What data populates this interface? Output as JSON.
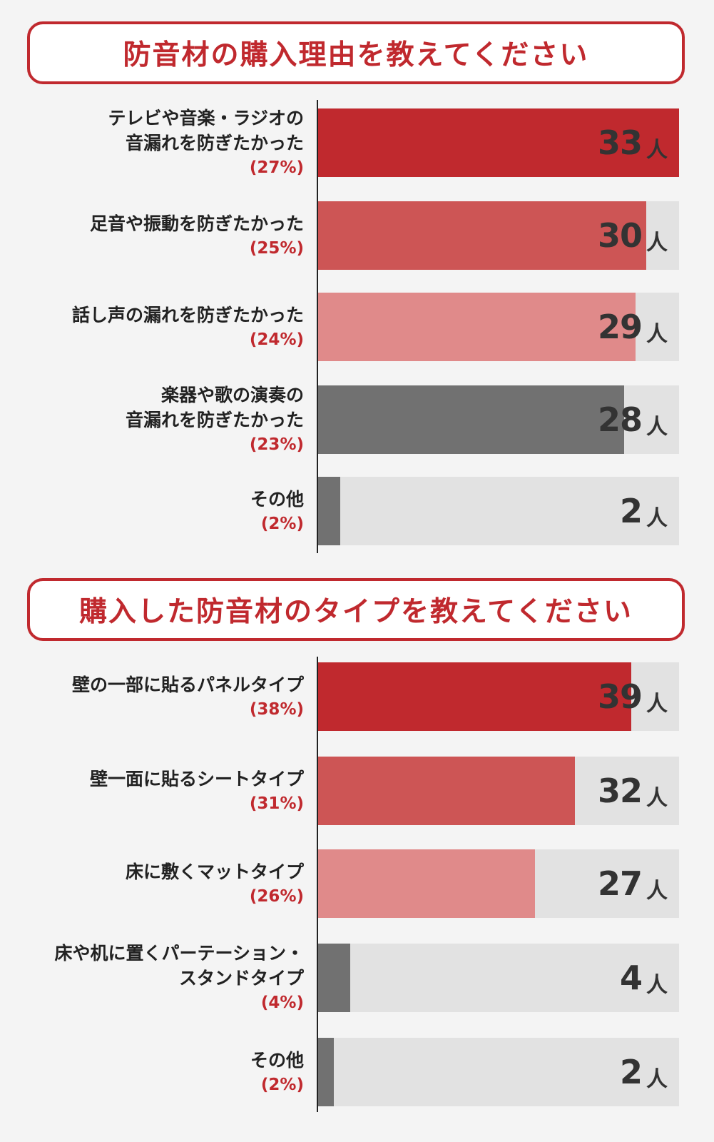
{
  "colors": {
    "accent": "#c0292e",
    "bar1": "#c0292e",
    "bar2": "#cd5555",
    "bar3": "#e08a8a",
    "bar4": "#717171",
    "track": "#e2e2e2"
  },
  "unit": "人",
  "chart_data": [
    {
      "type": "bar",
      "orientation": "horizontal",
      "title": "防音材の購入理由を教えてください",
      "xlim": [
        0,
        33
      ],
      "categories": [
        [
          "テレビや音楽・ラジオの",
          "音漏れを防ぎたかった"
        ],
        [
          "足音や振動を防ぎたかった"
        ],
        [
          "話し声の漏れを防ぎたかった"
        ],
        [
          "楽器や歌の演奏の",
          "音漏れを防ぎたかった"
        ],
        [
          "その他"
        ]
      ],
      "values": [
        33,
        30,
        29,
        28,
        2
      ],
      "percent_labels": [
        "(27%)",
        "(25%)",
        "(24%)",
        "(23%)",
        "(2%)"
      ],
      "bar_colors": [
        "#c0292e",
        "#cd5555",
        "#e08a8a",
        "#717171",
        "#717171"
      ]
    },
    {
      "type": "bar",
      "orientation": "horizontal",
      "title": "購入した防音材のタイプを教えてください",
      "xlim": [
        0,
        45
      ],
      "categories": [
        [
          "壁の一部に貼るパネルタイプ"
        ],
        [
          "壁一面に貼るシートタイプ"
        ],
        [
          "床に敷くマットタイプ"
        ],
        [
          "床や机に置くパーテーション・",
          "スタンドタイプ"
        ],
        [
          "その他"
        ]
      ],
      "values": [
        39,
        32,
        27,
        4,
        2
      ],
      "percent_labels": [
        "(38%)",
        "(31%)",
        "(26%)",
        "(4%)",
        "(2%)"
      ],
      "bar_colors": [
        "#c0292e",
        "#cd5555",
        "#e08a8a",
        "#717171",
        "#717171"
      ]
    }
  ]
}
